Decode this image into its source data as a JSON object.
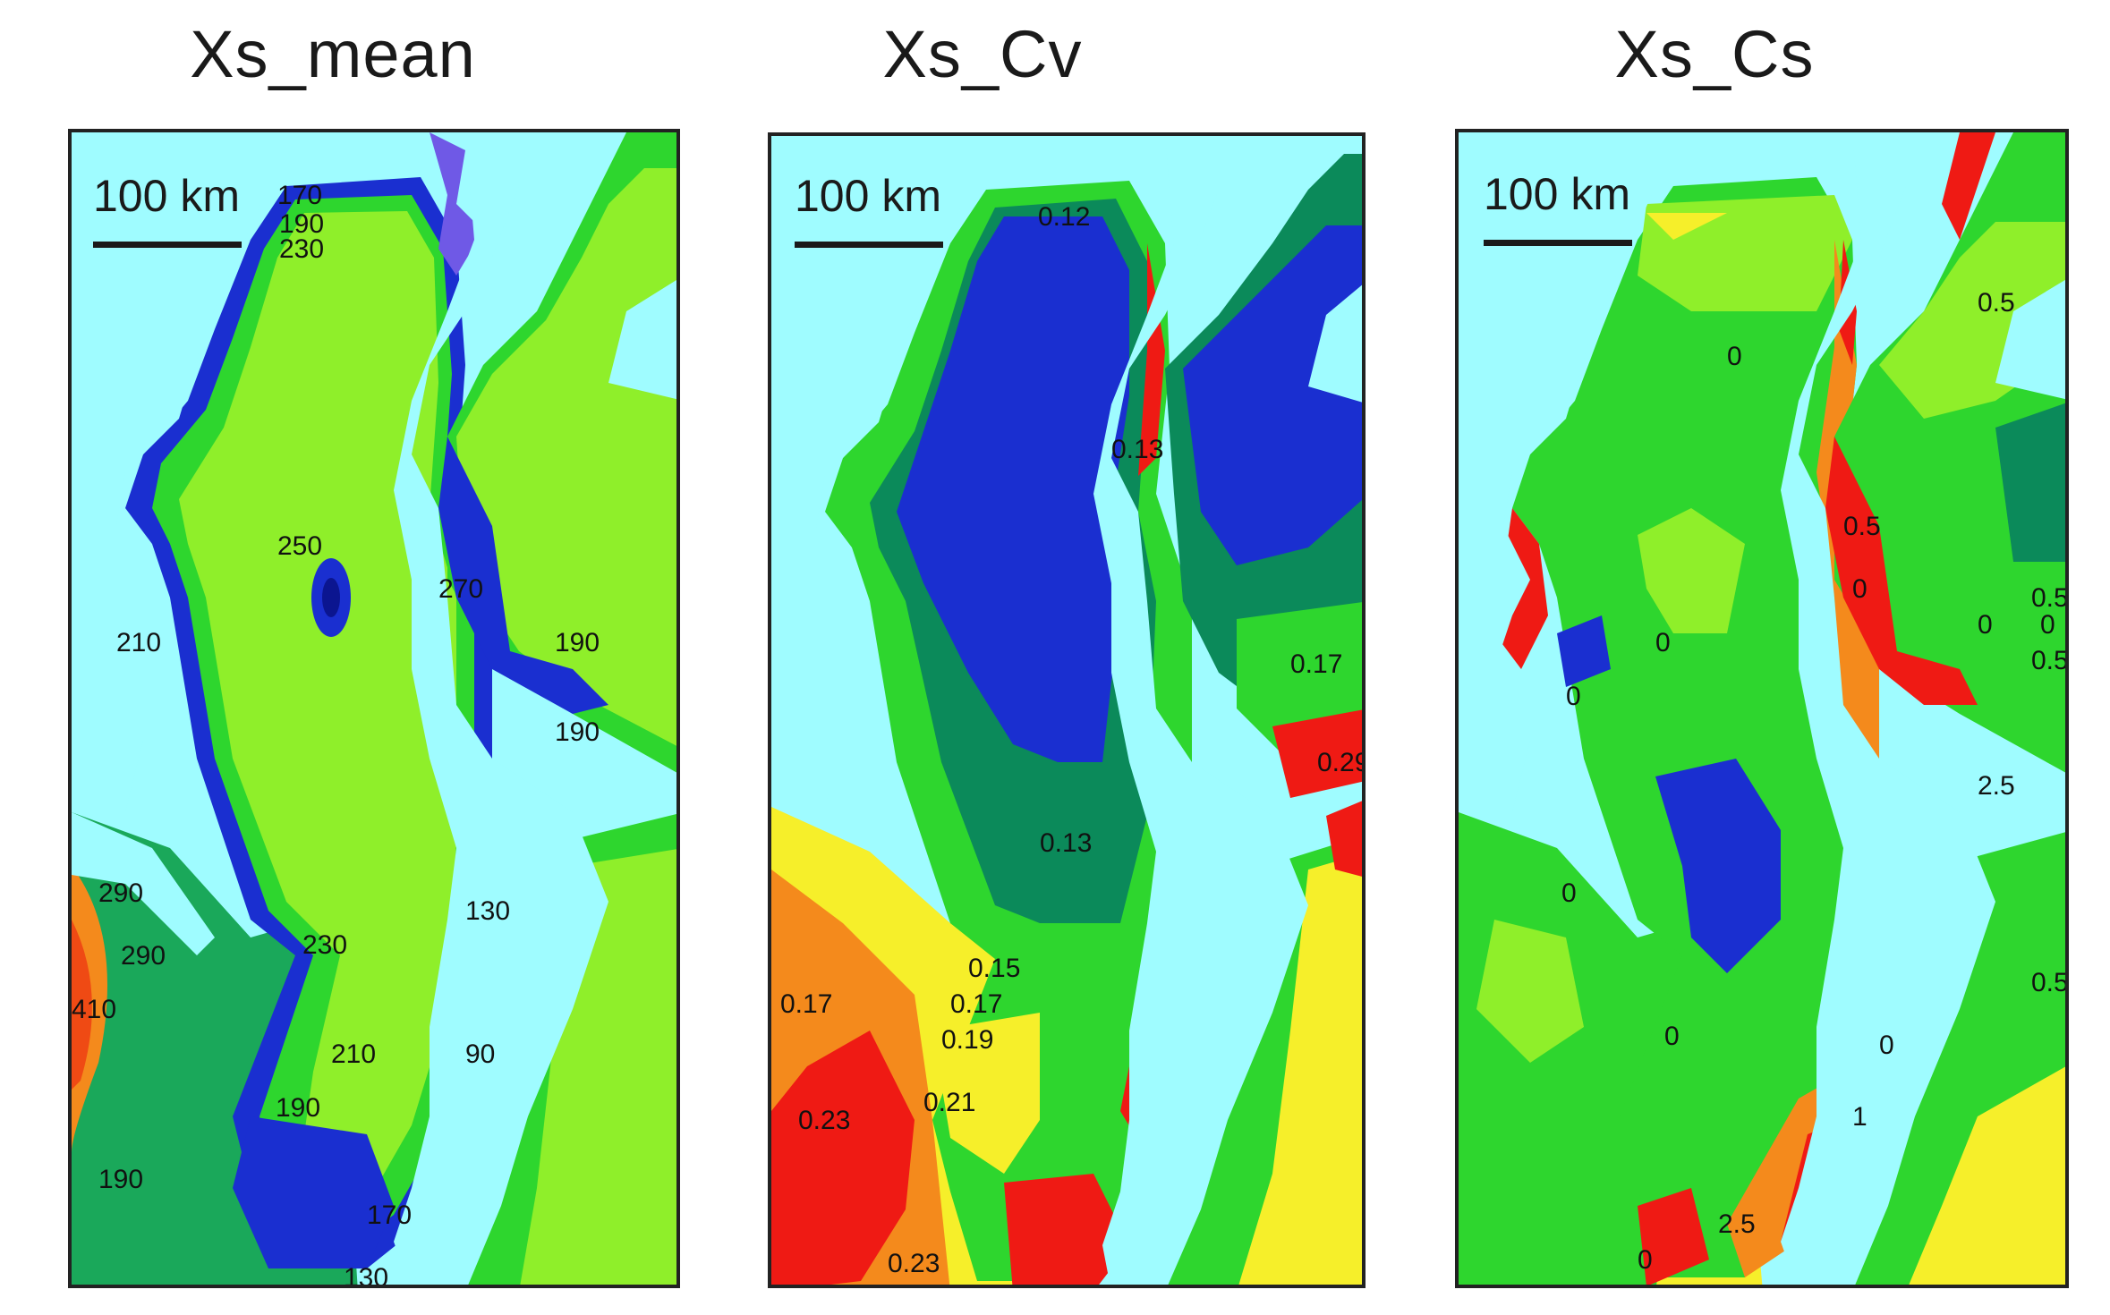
{
  "panels": [
    {
      "title": "Xs_mean",
      "scale_label": "100 km",
      "contour_labels": [
        "170",
        "190",
        "230",
        "250",
        "230",
        "210",
        "190",
        "170",
        "130",
        "290",
        "290",
        "410",
        "190",
        "130",
        "90",
        "210",
        "190",
        "270",
        "190"
      ]
    },
    {
      "title": "Xs_Cv",
      "scale_label": "100 km",
      "contour_labels": [
        "0.12",
        "0.13",
        "0.13",
        "0.15",
        "0.17",
        "0.19",
        "0.21",
        "0.23",
        "0.17",
        "0.23",
        "0.17",
        "0.29"
      ]
    },
    {
      "title": "Xs_Cs",
      "scale_label": "100 km",
      "contour_labels": [
        "0",
        "0",
        "0",
        "0",
        "0",
        "0",
        "0.5",
        "0",
        "0",
        "0.5",
        "0.5",
        "0",
        "1",
        "2.5",
        "0",
        "0.5",
        "2.5",
        "0.5"
      ]
    }
  ],
  "colors": {
    "water": "#9ffcff",
    "green_light": "#8fef2a",
    "green": "#2ed62e",
    "teal": "#0b8a5a",
    "blue": "#1a2fd0",
    "violet": "#6f59e6",
    "yellow": "#f6ef2a",
    "orange": "#f48a1c",
    "red": "#ef1a14"
  }
}
